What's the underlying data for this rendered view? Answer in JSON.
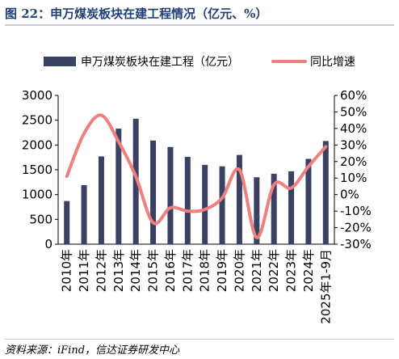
{
  "figure": {
    "title": "图 22：申万煤炭板块在建工程情况（亿元、%）",
    "source": "资料来源：iFind，信达证券研发中心"
  },
  "chart_data": {
    "type": "bar+line",
    "categories": [
      "2010年",
      "2011年",
      "2012年",
      "2013年",
      "2014年",
      "2015年",
      "2016年",
      "2017年",
      "2018年",
      "2019年",
      "2020年",
      "2021年",
      "2022年",
      "2023年",
      "2024年",
      "2025年1-9月"
    ],
    "series": [
      {
        "name": "申万煤炭板块在建工程（亿元）",
        "type": "bar",
        "axis": "left",
        "color": "#3b4163",
        "values": [
          870,
          1190,
          1770,
          2330,
          2530,
          2090,
          1960,
          1760,
          1600,
          1570,
          1800,
          1350,
          1420,
          1470,
          1720,
          2080
        ]
      },
      {
        "name": "同比增速",
        "type": "line",
        "axis": "right",
        "color": "#f07f7f",
        "values": [
          11,
          37,
          48,
          32,
          11,
          -17,
          -8,
          -10,
          -9,
          -2,
          15,
          -26,
          6,
          4,
          17,
          29
        ]
      }
    ],
    "y_left": {
      "min": 0,
      "max": 3000,
      "ticks": [
        0,
        500,
        1000,
        1500,
        2000,
        2500,
        3000
      ]
    },
    "y_right": {
      "min": -30,
      "max": 60,
      "ticks": [
        "-30%",
        "-20%",
        "-10%",
        "0%",
        "10%",
        "20%",
        "30%",
        "40%",
        "50%",
        "60%"
      ]
    },
    "grid": false,
    "legend_position": "top"
  }
}
